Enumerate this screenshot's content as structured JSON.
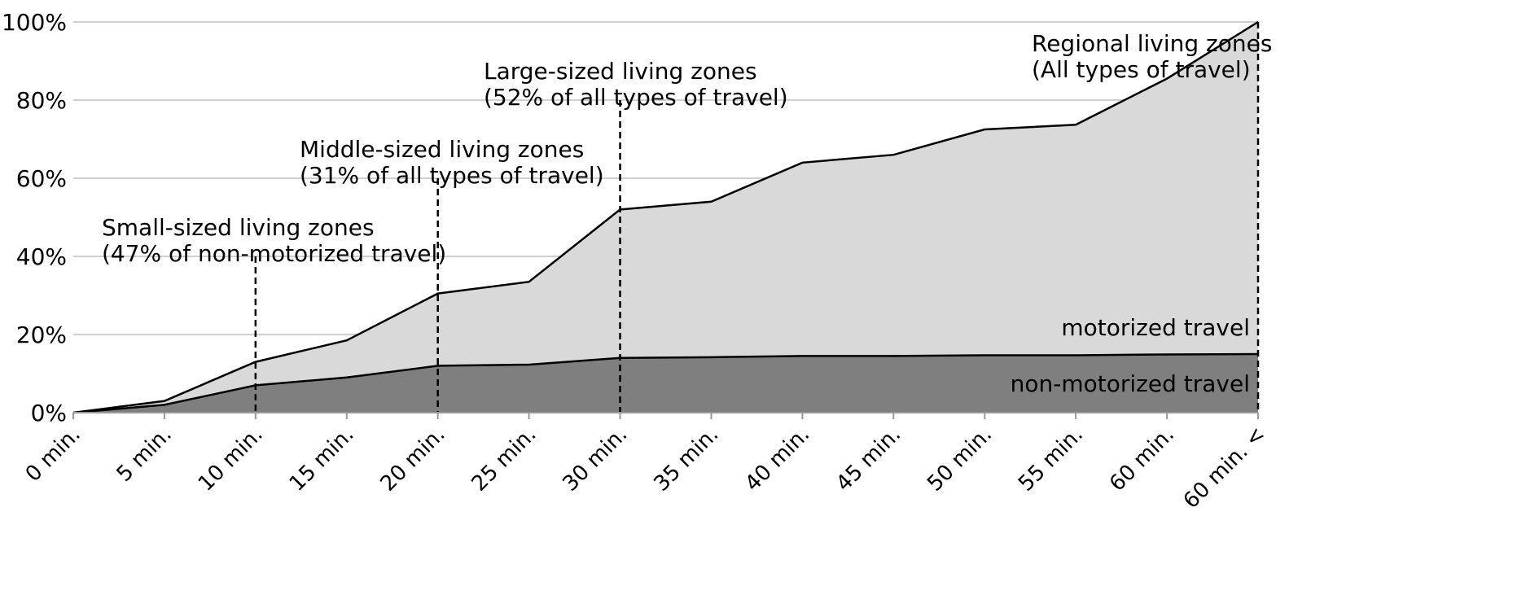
{
  "chart_data": {
    "type": "area",
    "title": "",
    "xlabel": "",
    "ylabel": "",
    "ylim": [
      0,
      100
    ],
    "grid": true,
    "categories": [
      "0 min.",
      "5 min.",
      "10 min.",
      "15 min.",
      "20 min.",
      "25 min.",
      "30 min.",
      "35 min.",
      "40 min.",
      "45 min.",
      "50 min.",
      "55 min.",
      "60 min.",
      "60 min. <"
    ],
    "y_ticks": [
      "0%",
      "20%",
      "40%",
      "60%",
      "80%",
      "100%"
    ],
    "series": [
      {
        "name": "non-motorized travel",
        "color": "#7f7f7f",
        "values": [
          0,
          2,
          7,
          9,
          12,
          12.3,
          14,
          14.2,
          14.5,
          14.5,
          14.7,
          14.7,
          14.9,
          15
        ]
      },
      {
        "name": "motorized travel",
        "color": "#d9d9d9",
        "cumulative_total": [
          0,
          3,
          13,
          18.5,
          30.5,
          33.5,
          52,
          54,
          64,
          66,
          72.5,
          73.7,
          85.5,
          100
        ]
      }
    ],
    "annotations": [
      {
        "category": "10 min.",
        "line_to": 40,
        "lines": [
          "Small-sized living zones",
          "(47% of non-motorized travel)"
        ]
      },
      {
        "category": "20 min.",
        "line_to": 60,
        "lines": [
          "Middle-sized living zones",
          "(31% of all types of travel)"
        ]
      },
      {
        "category": "30 min.",
        "line_to": 80,
        "lines": [
          "Large-sized living zones",
          "(52% of all types of travel)"
        ]
      },
      {
        "category": "60 min. <",
        "line_to": 100,
        "lines": [
          "Regional living zones",
          "(All types of travel)"
        ]
      }
    ]
  }
}
